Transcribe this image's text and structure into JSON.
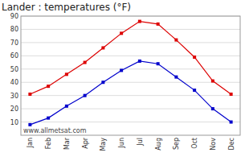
{
  "chart_data": {
    "type": "line",
    "title": "Lander : temperatures (°F)",
    "categories": [
      "Jan",
      "Feb",
      "Mar",
      "Apr",
      "May",
      "Jun",
      "Jul",
      "Aug",
      "Sep",
      "Oct",
      "Nov",
      "Dec"
    ],
    "series": [
      {
        "color": "#dd0000",
        "marker": "square",
        "values": [
          31,
          37,
          46,
          55,
          66,
          77,
          86,
          84,
          72,
          59,
          41,
          31
        ]
      },
      {
        "color": "#0000cc",
        "marker": "square",
        "values": [
          8,
          13,
          22,
          30,
          40,
          49,
          56,
          54,
          44,
          34,
          20,
          10
        ]
      }
    ],
    "ylim": [
      0,
      90
    ],
    "yticks": [
      10,
      20,
      30,
      40,
      50,
      60,
      70,
      80,
      90
    ],
    "grid": true,
    "annotation": "www.allmetsat.com"
  }
}
